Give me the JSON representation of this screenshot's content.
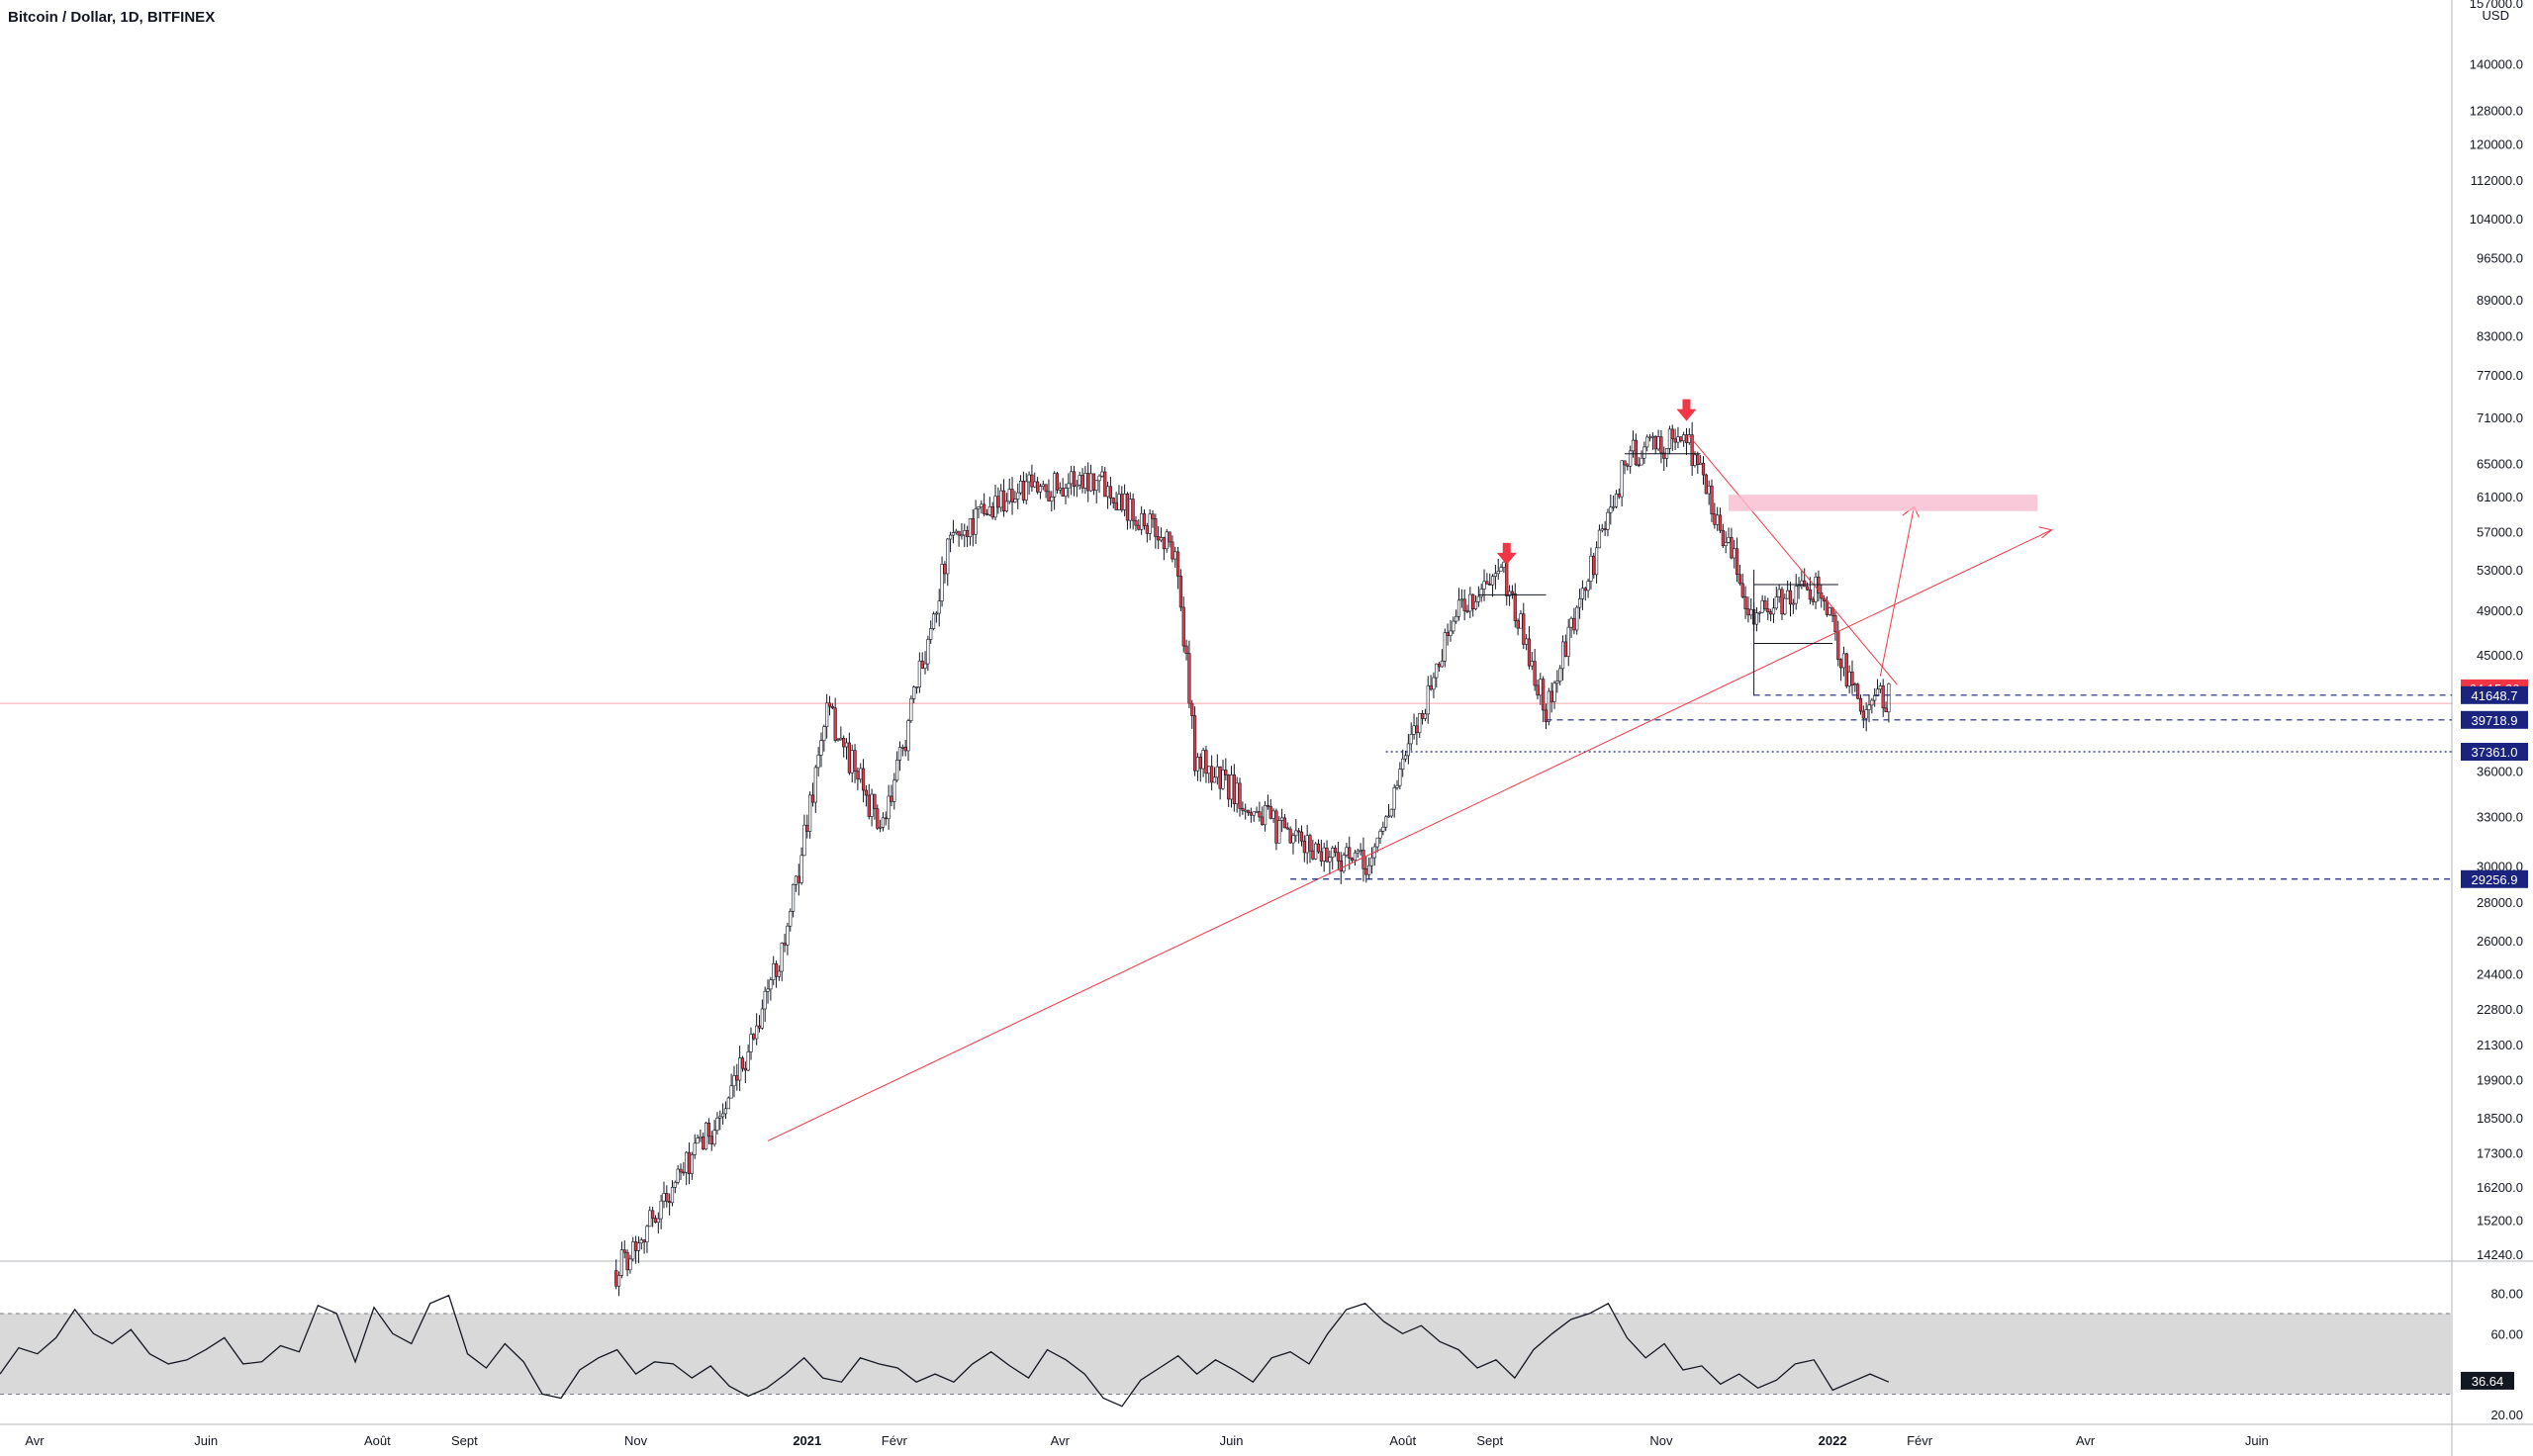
{
  "header": {
    "title": "Bitcoin / Dollar, 1D, BITFINEX"
  },
  "price_axis": {
    "unit": "USD",
    "top_label": "157000.0",
    "ticks": [
      "140000.0",
      "128000.0",
      "120000.0",
      "112000.0",
      "104000.0",
      "96500.0",
      "89000.0",
      "83000.0",
      "77000.0",
      "71000.0",
      "65000.0",
      "61000.0",
      "57000.0",
      "53000.0",
      "49000.0",
      "45000.0",
      "36000.0",
      "33000.0",
      "30000.0",
      "28000.0",
      "26000.0",
      "24400.0",
      "22800.0",
      "21300.0",
      "19900.0",
      "18500.0",
      "17300.0",
      "16200.0",
      "15200.0",
      "14240.0"
    ]
  },
  "price_tags": [
    {
      "id": "countdown",
      "text": "04:15:26",
      "color": "#f23645"
    },
    {
      "id": "lvl-41648",
      "text": "41648.7",
      "color": "#1a237e"
    },
    {
      "id": "lvl-39718",
      "text": "39718.9",
      "color": "#1a237e"
    },
    {
      "id": "lvl-37361",
      "text": "37361.0",
      "color": "#1a237e"
    },
    {
      "id": "lvl-29256",
      "text": "29256.9",
      "color": "#1a237e"
    }
  ],
  "time_axis": {
    "labels": [
      "Avr",
      "Juin",
      "Août",
      "Sept",
      "Nov",
      "2021",
      "Févr",
      "Avr",
      "Juin",
      "Août",
      "Sept",
      "Nov",
      "2022",
      "Févr",
      "Avr",
      "Juin"
    ]
  },
  "rsi": {
    "ticks": [
      "80.00",
      "60.00",
      "20.00"
    ],
    "current": "36.64",
    "band_upper": 70,
    "band_lower": 30
  },
  "colors": {
    "up": "#ffffff",
    "down": "#f23645",
    "wick": "#131722",
    "trend": "#f23645",
    "level": "#1a237e",
    "zone": "#f8bbd0",
    "rsi_band": "#d9d9d9"
  },
  "chart_data": {
    "type": "line",
    "title": "Bitcoin / Dollar, 1D, BITFINEX",
    "xlabel": "",
    "ylabel": "USD",
    "y_scale": "log",
    "ylim": [
      13400,
      157000
    ],
    "x": [
      "2020-10-25",
      "2020-11-15",
      "2020-12-05",
      "2020-12-25",
      "2021-01-08",
      "2021-01-28",
      "2021-02-21",
      "2021-03-13",
      "2021-04-14",
      "2021-05-12",
      "2021-05-19",
      "2021-06-22",
      "2021-07-20",
      "2021-08-20",
      "2021-09-06",
      "2021-09-21",
      "2021-10-20",
      "2021-11-10",
      "2021-12-04",
      "2021-12-27",
      "2022-01-10",
      "2022-01-21"
    ],
    "series": [
      {
        "values": [
          13800,
          16300,
          19200,
          26500,
          40500,
          32000,
          56000,
          61200,
          63500,
          55000,
          37000,
          31500,
          30000,
          49000,
          52500,
          40500,
          66000,
          68500,
          48500,
          51500,
          40800,
          41650
        ]
      }
    ],
    "levels": [
      41648.7,
      39718.9,
      37361.0,
      29256.9
    ],
    "current_price_tag": "04:15:26",
    "rsi": {
      "ylim": [
        15,
        95
      ],
      "band": [
        30,
        70
      ],
      "current": 36.64,
      "values": [
        40,
        53,
        50,
        58,
        72,
        60,
        55,
        62,
        50,
        45,
        47,
        52,
        58,
        45,
        46,
        54,
        51,
        74,
        70,
        46,
        73,
        60,
        55,
        75,
        79,
        50,
        43,
        55,
        46,
        30,
        28,
        42,
        48,
        52,
        40,
        46,
        45,
        38,
        44,
        34,
        29,
        33,
        40,
        48,
        38,
        36,
        48,
        45,
        43,
        36,
        40,
        36,
        45,
        51,
        44,
        38,
        52,
        47,
        40,
        28,
        24,
        37,
        43,
        49,
        40,
        47,
        42,
        36,
        48,
        51,
        45,
        60,
        72,
        75,
        66,
        60,
        64,
        56,
        52,
        43,
        47,
        38,
        52,
        60,
        67,
        70,
        75,
        58,
        48,
        55,
        42,
        44,
        35,
        40,
        33,
        37,
        45,
        47,
        32,
        36,
        40,
        36
      ]
    }
  }
}
